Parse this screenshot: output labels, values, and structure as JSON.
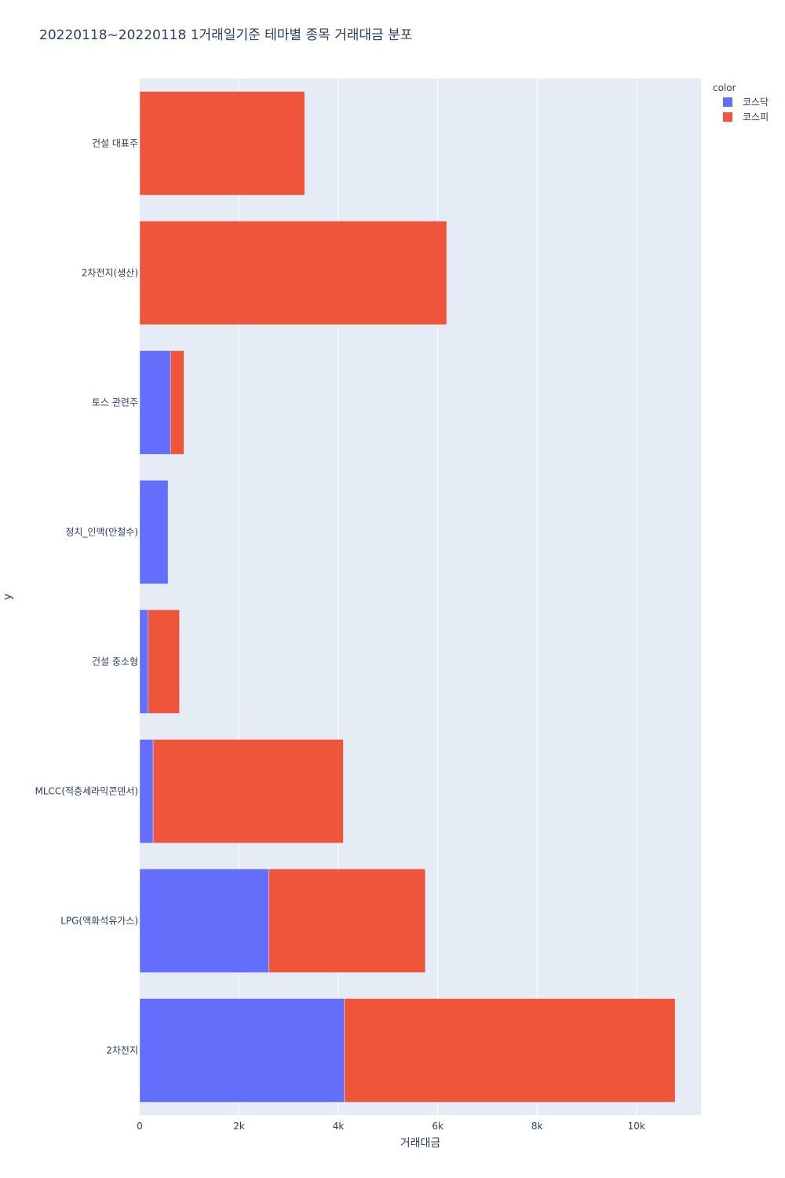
{
  "chart_data": {
    "type": "bar",
    "orientation": "horizontal",
    "stacked": true,
    "title": "20220118~20220118 1거래일기준 테마별 종목 거래대금 분포",
    "xlabel": "거래대금",
    "ylabel": "y",
    "xlim": [
      0,
      11300
    ],
    "x_ticks": [
      0,
      2000,
      4000,
      6000,
      8000,
      10000
    ],
    "x_tick_labels": [
      "0",
      "2k",
      "4k",
      "6k",
      "8k",
      "10k"
    ],
    "categories": [
      "건설 대표주",
      "2차전지(생산)",
      "토스 관련주",
      "정치_인맥(안철수)",
      "건설 중소형",
      "MLCC(적층세라믹콘덴서)",
      "LPG(액화석유가스)",
      "2차전지"
    ],
    "series": [
      {
        "name": "코스닥",
        "color": "#636efa",
        "values": [
          0,
          0,
          620,
          570,
          170,
          270,
          2600,
          4120
        ]
      },
      {
        "name": "코스피",
        "color": "#ef553b",
        "values": [
          3320,
          6180,
          270,
          0,
          630,
          3830,
          3150,
          6660
        ]
      }
    ],
    "legend": {
      "title": "color",
      "position": "top-right"
    },
    "grid": true,
    "plot_bg": "#e5ecf6"
  }
}
